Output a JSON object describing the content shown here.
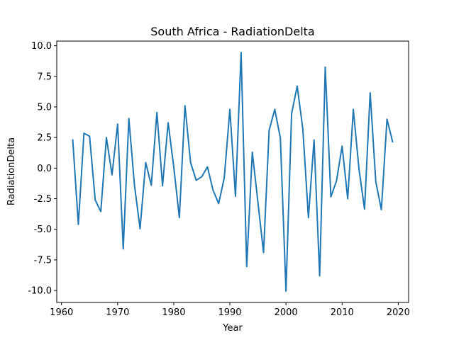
{
  "chart_data": {
    "type": "line",
    "title": "South Africa - RadiationDelta",
    "xlabel": "Year",
    "ylabel": "RadiationDelta",
    "xlim": [
      1959.15,
      2021.85
    ],
    "ylim": [
      -10.98,
      10.38
    ],
    "xticks": [
      1960,
      1970,
      1980,
      1990,
      2000,
      2010,
      2020
    ],
    "yticks": [
      -10.0,
      -7.5,
      -5.0,
      -2.5,
      0.0,
      2.5,
      5.0,
      7.5,
      10.0
    ],
    "grid": false,
    "series": [
      {
        "color": "#1f77b4",
        "x": [
          1962,
          1963,
          1964,
          1965,
          1966,
          1967,
          1968,
          1969,
          1970,
          1971,
          1972,
          1973,
          1974,
          1975,
          1976,
          1977,
          1978,
          1979,
          1980,
          1981,
          1982,
          1983,
          1984,
          1985,
          1986,
          1987,
          1988,
          1989,
          1990,
          1991,
          1992,
          1993,
          1994,
          1995,
          1996,
          1997,
          1998,
          1999,
          2000,
          2001,
          2002,
          2003,
          2004,
          2005,
          2006,
          2007,
          2008,
          2009,
          2010,
          2011,
          2012,
          2013,
          2014,
          2015,
          2016,
          2017,
          2018,
          2019
        ],
        "y": [
          2.3,
          -4.6,
          2.85,
          2.6,
          -2.6,
          -3.55,
          2.5,
          -0.55,
          3.6,
          -6.6,
          4.05,
          -1.4,
          -4.95,
          0.45,
          -1.4,
          4.55,
          -1.45,
          3.7,
          0.1,
          -4.05,
          5.1,
          0.45,
          -1.0,
          -0.7,
          0.1,
          -1.8,
          -2.9,
          -0.8,
          4.8,
          -2.3,
          9.45,
          -8.05,
          1.3,
          -2.8,
          -6.9,
          3.1,
          4.8,
          2.45,
          -10.05,
          4.45,
          6.7,
          3.2,
          -4.05,
          2.3,
          -8.8,
          8.25,
          -2.35,
          -1.05,
          1.8,
          -2.5,
          4.8,
          -0.05,
          -3.35,
          6.15,
          -1.1,
          -3.4,
          4.0,
          2.15
        ]
      }
    ]
  }
}
